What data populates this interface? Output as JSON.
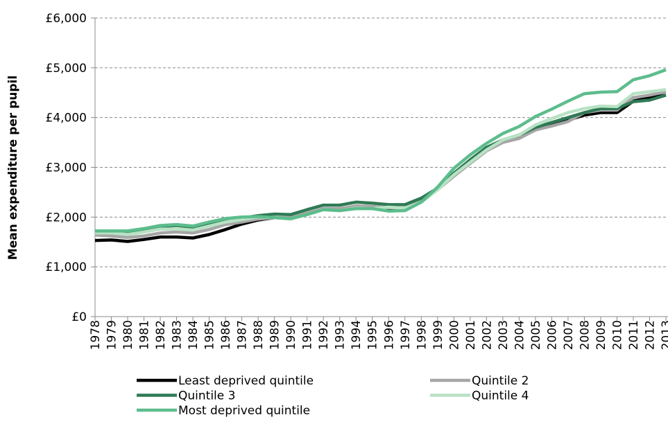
{
  "chart_data": {
    "type": "line",
    "y_label": "Mean expenditure per pupil",
    "categories": [
      "1978",
      "1979",
      "1980",
      "1981",
      "1982",
      "1983",
      "1984",
      "1985",
      "1986",
      "1987",
      "1988",
      "1989",
      "1990",
      "1991",
      "1992",
      "1993",
      "1994",
      "1995",
      "1996",
      "1997",
      "1998",
      "1999",
      "2000",
      "2001",
      "2002",
      "2003",
      "2004",
      "2005",
      "2006",
      "2007",
      "2008",
      "2009",
      "2010",
      "2011",
      "2012",
      "2013"
    ],
    "series": [
      {
        "name": "Least deprived quintile",
        "color": "#000000",
        "values": [
          1530,
          1540,
          1510,
          1550,
          1600,
          1600,
          1580,
          1650,
          1750,
          1860,
          1940,
          1990,
          1980,
          2080,
          2160,
          2160,
          2220,
          2210,
          2180,
          2170,
          2330,
          2570,
          2850,
          3100,
          3350,
          3520,
          3600,
          3750,
          3850,
          3950,
          4050,
          4100,
          4100,
          4330,
          4400,
          4450
        ]
      },
      {
        "name": "Quintile 2",
        "color": "#a6a6a6",
        "values": [
          1640,
          1620,
          1590,
          1620,
          1680,
          1700,
          1680,
          1750,
          1850,
          1900,
          1960,
          1990,
          1990,
          2080,
          2170,
          2170,
          2220,
          2210,
          2190,
          2180,
          2330,
          2550,
          2820,
          3080,
          3330,
          3500,
          3580,
          3750,
          3830,
          3920,
          4100,
          4150,
          4150,
          4400,
          4450,
          4520
        ]
      },
      {
        "name": "Quintile 3",
        "color": "#2f7a55",
        "values": [
          1700,
          1690,
          1690,
          1750,
          1810,
          1830,
          1800,
          1880,
          1950,
          1980,
          2030,
          2060,
          2050,
          2150,
          2240,
          2240,
          2300,
          2280,
          2250,
          2250,
          2380,
          2580,
          2880,
          3150,
          3400,
          3550,
          3650,
          3800,
          3900,
          4000,
          4100,
          4180,
          4180,
          4320,
          4350,
          4450
        ]
      },
      {
        "name": "Quintile 4",
        "color": "#b8e2c4",
        "values": [
          1680,
          1680,
          1650,
          1700,
          1760,
          1760,
          1740,
          1820,
          1900,
          1950,
          2000,
          1990,
          1960,
          2050,
          2150,
          2130,
          2180,
          2170,
          2200,
          2180,
          2300,
          2550,
          2850,
          3100,
          3350,
          3550,
          3650,
          3850,
          3980,
          4100,
          4180,
          4230,
          4220,
          4480,
          4520,
          4560
        ]
      },
      {
        "name": "Most deprived quintile",
        "color": "#5dbd8d",
        "values": [
          1720,
          1720,
          1720,
          1770,
          1830,
          1850,
          1820,
          1900,
          1970,
          2000,
          2010,
          1990,
          1970,
          2050,
          2150,
          2130,
          2170,
          2170,
          2120,
          2130,
          2300,
          2600,
          2980,
          3250,
          3480,
          3680,
          3820,
          4020,
          4170,
          4330,
          4480,
          4510,
          4520,
          4760,
          4840,
          4960
        ]
      }
    ],
    "ylim": [
      0,
      6000
    ],
    "yticks": [
      {
        "value": 0,
        "label": "£0"
      },
      {
        "value": 1000,
        "label": "£1,000"
      },
      {
        "value": 2000,
        "label": "£2,000"
      },
      {
        "value": 3000,
        "label": "£3,000"
      },
      {
        "value": 4000,
        "label": "£4,000"
      },
      {
        "value": 5000,
        "label": "£5,000"
      },
      {
        "value": 6000,
        "label": "£6,000"
      }
    ],
    "grid": true
  }
}
